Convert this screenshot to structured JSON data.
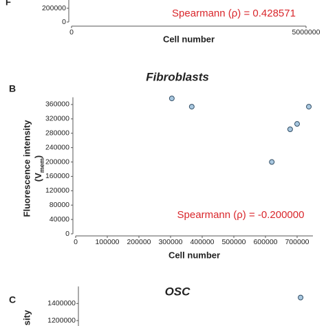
{
  "chart_data": [
    {
      "type": "scatter",
      "y_label": "F",
      "x_label": "Cell number",
      "annotation": "Spearmann (ρ) = 0.428571",
      "xlim": [
        0,
        5000000
      ],
      "xticks": [
        0,
        5000000
      ],
      "ylim": [
        0,
        400000
      ],
      "yticks": [
        0,
        200000
      ],
      "series": [
        {
          "color": "#a9c8e0",
          "x": [],
          "values": []
        }
      ]
    },
    {
      "type": "scatter",
      "panel": "B",
      "title": "Fibroblasts",
      "y_label": "Fluorescence intensity",
      "y_label_parts": [
        "(V",
        "mem",
        ")"
      ],
      "x_label": "Cell number",
      "annotation": "Spearmann (ρ) = -0.200000",
      "xlim": [
        0,
        750000
      ],
      "xticks": [
        0,
        100000,
        200000,
        300000,
        400000,
        500000,
        600000,
        700000
      ],
      "ylim": [
        0,
        380000
      ],
      "yticks": [
        0,
        40000,
        80000,
        120000,
        160000,
        200000,
        240000,
        280000,
        320000,
        360000
      ],
      "series": [
        {
          "color": "#a9c8e0",
          "x": [
            304000,
            367000,
            620000,
            678000,
            700000,
            737000
          ],
          "values": [
            377000,
            354000,
            200000,
            291000,
            306000,
            354000
          ]
        }
      ]
    },
    {
      "type": "scatter",
      "panel": "C",
      "title": "OSC",
      "y_label": "sity",
      "xlim": [
        0,
        5000000
      ],
      "ylim": [
        1100000,
        1600000
      ],
      "yticks": [
        1200000,
        1400000
      ],
      "series": [
        {
          "color": "#a9c8e0",
          "x": [
            4740000
          ],
          "values": [
            1470000
          ]
        }
      ]
    }
  ]
}
